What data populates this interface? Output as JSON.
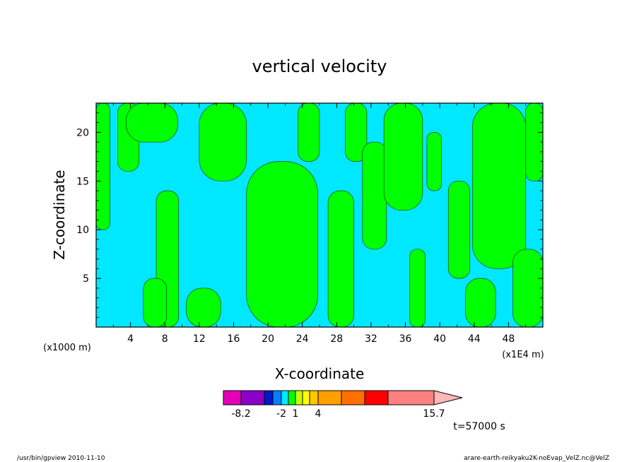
{
  "chart_data": {
    "type": "heatmap",
    "title": "vertical velocity",
    "xlabel": "X-coordinate",
    "ylabel": "Z-coordinate",
    "x_unit_left": "(x1000 m)",
    "x_unit_right": "(x1E4 m)",
    "xlim": [
      0,
      52
    ],
    "ylim": [
      0,
      23
    ],
    "x_ticks": [
      "4",
      "8",
      "12",
      "16",
      "20",
      "24",
      "28",
      "32",
      "36",
      "40",
      "44",
      "48"
    ],
    "y_ticks": [
      "5",
      "10",
      "15",
      "20"
    ],
    "x_tick_values": [
      4,
      8,
      12,
      16,
      20,
      24,
      28,
      32,
      36,
      40,
      44,
      48
    ],
    "y_tick_values": [
      5,
      10,
      15,
      20
    ],
    "field_colors": {
      "negative": "#00e8ff",
      "positive": "#00ff00"
    },
    "positive_regions": [
      {
        "x": [
          0,
          1.6
        ],
        "y": [
          10,
          23
        ]
      },
      {
        "x": [
          2.5,
          5.0
        ],
        "y": [
          16,
          23
        ]
      },
      {
        "x": [
          3.5,
          9.5
        ],
        "y": [
          19,
          23
        ]
      },
      {
        "x": [
          7.0,
          9.6
        ],
        "y": [
          0,
          14
        ]
      },
      {
        "x": [
          5.5,
          8.2
        ],
        "y": [
          0,
          5
        ]
      },
      {
        "x": [
          10.5,
          14.5
        ],
        "y": [
          0,
          4
        ]
      },
      {
        "x": [
          12.0,
          17.5
        ],
        "y": [
          15,
          23
        ]
      },
      {
        "x": [
          17.5,
          25.8
        ],
        "y": [
          0,
          17
        ]
      },
      {
        "x": [
          23.5,
          26.0
        ],
        "y": [
          17,
          23
        ]
      },
      {
        "x": [
          27.0,
          30.0
        ],
        "y": [
          0,
          14
        ]
      },
      {
        "x": [
          29.0,
          31.5
        ],
        "y": [
          17,
          23
        ]
      },
      {
        "x": [
          31.0,
          33.8
        ],
        "y": [
          8,
          19
        ]
      },
      {
        "x": [
          33.5,
          38.0
        ],
        "y": [
          12,
          23
        ]
      },
      {
        "x": [
          36.5,
          38.3
        ],
        "y": [
          0,
          8
        ]
      },
      {
        "x": [
          38.5,
          40.2
        ],
        "y": [
          14,
          20
        ]
      },
      {
        "x": [
          41.0,
          43.5
        ],
        "y": [
          5,
          15
        ]
      },
      {
        "x": [
          43.8,
          50.0
        ],
        "y": [
          6,
          23
        ]
      },
      {
        "x": [
          43.0,
          46.5
        ],
        "y": [
          0,
          5
        ]
      },
      {
        "x": [
          48.5,
          52.0
        ],
        "y": [
          0,
          8
        ]
      },
      {
        "x": [
          50.0,
          52.0
        ],
        "y": [
          15,
          23
        ]
      }
    ],
    "colorbar": {
      "colors": [
        "#e400b8",
        "#8a00c8",
        "#0018c8",
        "#0080ff",
        "#00e8ff",
        "#00ff00",
        "#c8ff00",
        "#ffff00",
        "#ffc800",
        "#ffa000",
        "#ff7000",
        "#ff0000",
        "#ff8080",
        "#ffb8b8"
      ],
      "labels": [
        "-8.2",
        "-2",
        "1",
        "4",
        "15.7"
      ]
    },
    "time_label": "t=57000 s"
  },
  "footer": {
    "left": "/usr/bin/gpview   2010-11-10",
    "right": "arare-earth-reikyaku2K-noEvap_VelZ.nc@VelZ"
  }
}
